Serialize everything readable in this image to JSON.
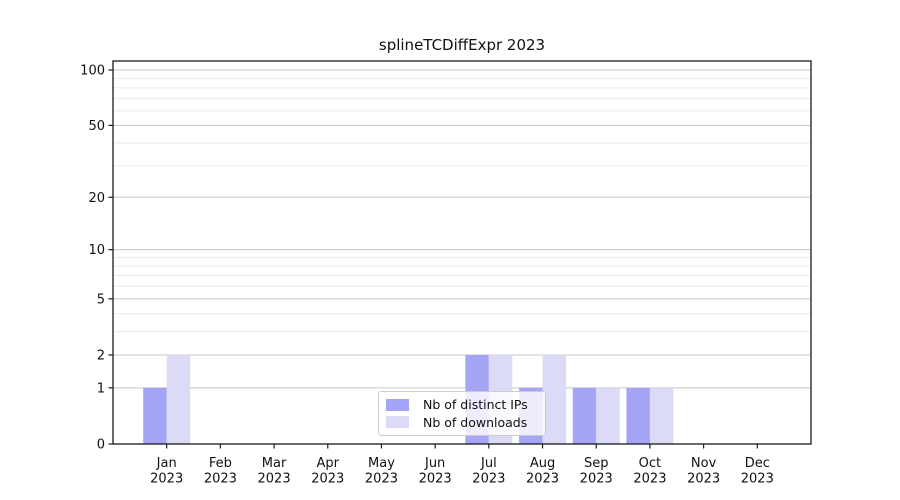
{
  "chart_data": {
    "type": "bar",
    "title": "splineTCDiffExpr 2023",
    "categories": [
      "Jan",
      "Feb",
      "Mar",
      "Apr",
      "May",
      "Jun",
      "Jul",
      "Aug",
      "Sep",
      "Oct",
      "Nov",
      "Dec"
    ],
    "category_year": "2023",
    "series": [
      {
        "name": "Nb of distinct IPs",
        "color": "#a5a5f5",
        "values": [
          1,
          0,
          0,
          0,
          0,
          0,
          2,
          1,
          1,
          1,
          0,
          0
        ]
      },
      {
        "name": "Nb of downloads",
        "color": "#dbdbf8",
        "values": [
          2,
          0,
          0,
          0,
          0,
          0,
          2,
          2,
          1,
          1,
          0,
          0
        ]
      }
    ],
    "xlabel": "",
    "ylabel": "",
    "yscale": "log1p",
    "y_ticks": [
      0,
      1,
      2,
      5,
      10,
      20,
      50,
      100
    ],
    "y_minor_gridlines": [
      3,
      4,
      6,
      7,
      8,
      9,
      30,
      40,
      60,
      70,
      80,
      90
    ],
    "ylim": [
      0,
      112
    ],
    "grid": "horizontal-major-and-minor",
    "legend_position": "lower center inside plot",
    "colors": {
      "grid_major": "#c6c6c6",
      "grid_minor": "#ebebeb",
      "axis": "#1a1a1a",
      "background": "#ffffff"
    }
  }
}
